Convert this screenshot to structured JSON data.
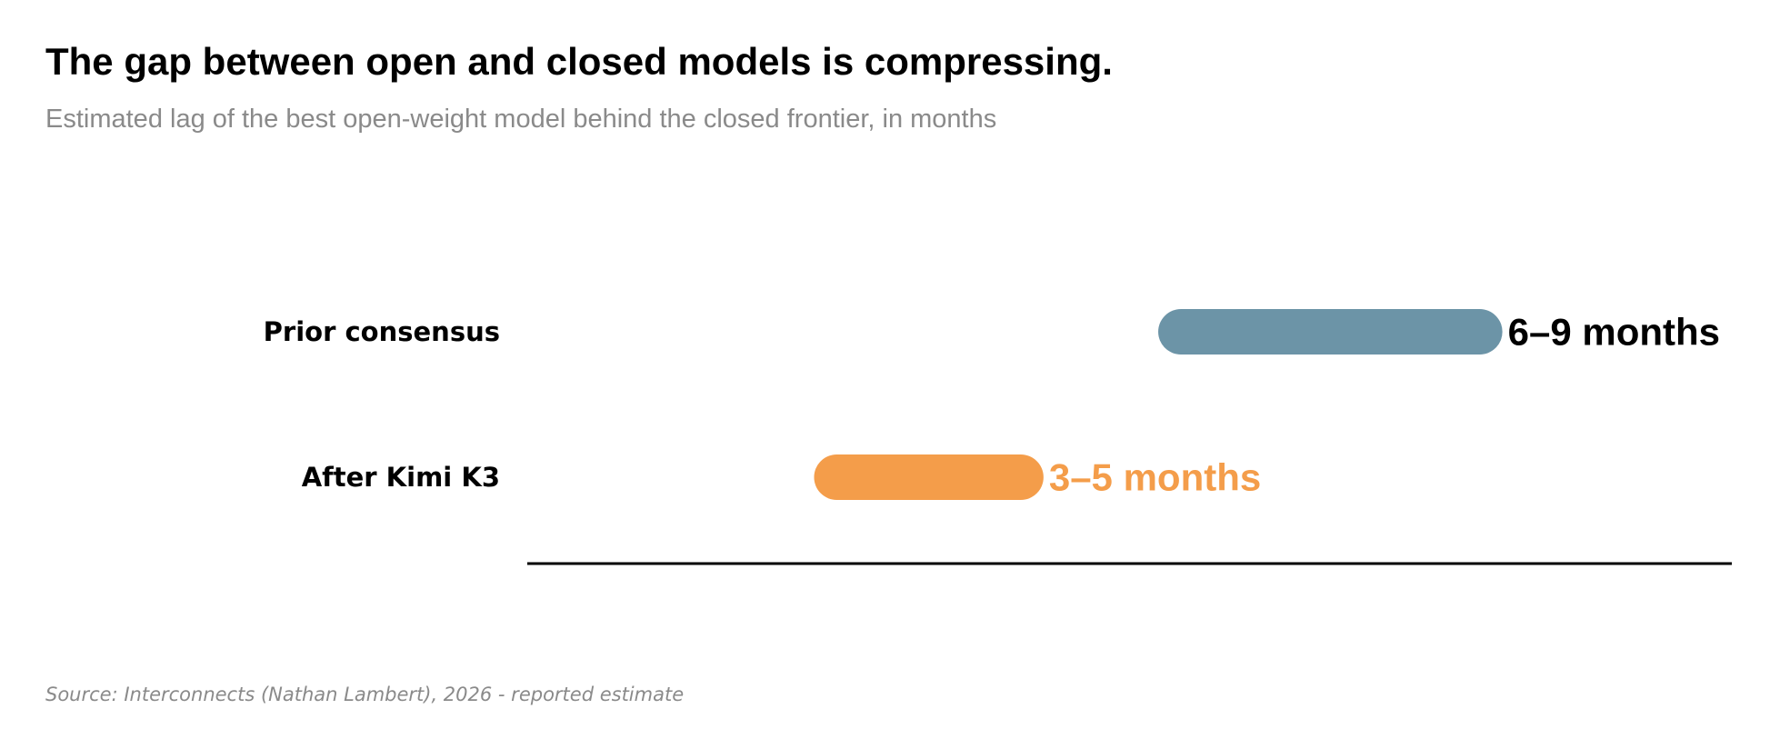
{
  "header": {
    "title": "The gap between open and closed models is compressing.",
    "subtitle": "Estimated lag of the best open-weight model behind the closed frontier, in months"
  },
  "footer": {
    "source": "Source: Interconnects (Nathan Lambert), 2026 - reported estimate"
  },
  "colors": {
    "muted_text": "#8a8a8a",
    "axis": "#000000",
    "prior_bar": "#6c94a7",
    "after_bar": "#f49d4a"
  },
  "chart_data": {
    "type": "bar",
    "orientation": "horizontal",
    "style": "range",
    "unit": "months",
    "categories": [
      "Prior consensus",
      "After Kimi K3"
    ],
    "series": [
      {
        "values": [
          [
            6,
            9
          ],
          [
            3,
            5
          ]
        ],
        "labels": [
          "6–9 months",
          "3–5 months"
        ],
        "colors": [
          "#6c94a7",
          "#f49d4a"
        ],
        "label_colors": [
          "#000000",
          "#f49d4a"
        ]
      }
    ],
    "xlim": [
      0.5,
      11
    ],
    "grid": false,
    "legend": "none",
    "x_ticks_shown": false
  }
}
